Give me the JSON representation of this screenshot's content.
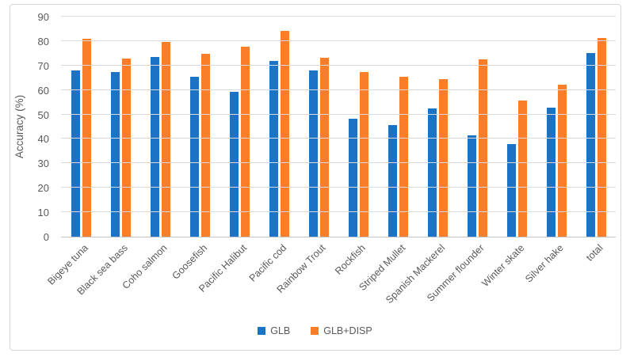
{
  "chart": {
    "y_ticks": [
      0,
      10,
      20,
      30,
      40,
      50,
      60,
      70,
      80,
      90
    ],
    "text_color": "#595959",
    "gridline_color": "#DADADA",
    "axis_line_color": "#C6C6C6"
  },
  "chart_data": {
    "type": "bar",
    "title": "",
    "xlabel": "",
    "ylabel": "Accuracy (%)",
    "ylim": [
      0,
      90
    ],
    "grid": "horizontal",
    "legend_position": "bottom-center",
    "categories": [
      "Bigeye tuna",
      "Black sea bass",
      "Coho salmon",
      "Goosefish",
      "Pacific Halibut",
      "Pacific cod",
      "Rainbow Trout",
      "Rockfish",
      "Striped Mullet",
      "Spanish Mackerel",
      "Summer flounder",
      "Winter skate",
      "Silver hake",
      "total"
    ],
    "series": [
      {
        "name": "GLB",
        "color": "#1C73C5",
        "values": [
          68.1,
          67.4,
          73.6,
          65.5,
          59.2,
          71.9,
          67.9,
          48.4,
          45.7,
          52.4,
          41.4,
          37.9,
          52.9,
          75.2
        ]
      },
      {
        "name": "GLB+DISP",
        "color": "#F87E29",
        "values": [
          81.1,
          72.9,
          79.5,
          74.7,
          77.6,
          84.1,
          73.2,
          67.5,
          65.5,
          64.5,
          72.6,
          55.7,
          62.3,
          81.2
        ]
      }
    ]
  }
}
